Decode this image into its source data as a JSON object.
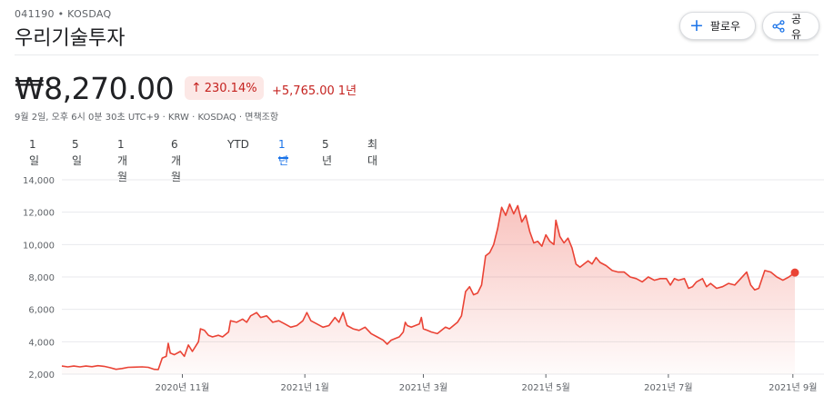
{
  "header": {
    "ticker": "041190 • KOSDAQ",
    "company_name": "우리기술투자",
    "follow_label": "팔로우",
    "share_label": "공유",
    "follow_icon": "plus-icon",
    "share_icon": "share-icon"
  },
  "quote": {
    "price": "₩8,270.00",
    "percent_change": "230.14%",
    "absolute_change": "+5,765.00",
    "period": "1년",
    "meta": "9월 2일, 오후 6시 0분 30초 UTC+9 · KRW · KOSDAQ · 면책조항"
  },
  "range_tabs": [
    {
      "label": "1일",
      "active": false
    },
    {
      "label": "5일",
      "active": false
    },
    {
      "label": "1개월",
      "active": false
    },
    {
      "label": "6개월",
      "active": false
    },
    {
      "label": "YTD",
      "active": false
    },
    {
      "label": "1년",
      "active": true
    },
    {
      "label": "5년",
      "active": false
    },
    {
      "label": "최대",
      "active": false
    }
  ],
  "colors": {
    "line": "#ea4335",
    "positive_text": "#c5221f",
    "badge_bg": "#fce8e6",
    "accent": "#1a73e8"
  },
  "chart_data": {
    "type": "area",
    "title": "",
    "xlabel": "",
    "ylabel": "",
    "ylim": [
      2000,
      14000
    ],
    "y_ticks": [
      {
        "value": 2000,
        "label": "2,000"
      },
      {
        "value": 4000,
        "label": "4,000"
      },
      {
        "value": 6000,
        "label": "6,000"
      },
      {
        "value": 8000,
        "label": "8,000"
      },
      {
        "value": 10000,
        "label": "10,000"
      },
      {
        "value": 12000,
        "label": "12,000"
      },
      {
        "value": 14000,
        "label": "14,000"
      }
    ],
    "x_ticks": [
      {
        "value": "2020-11-01",
        "label": "2020년 11월"
      },
      {
        "value": "2021-01-01",
        "label": "2021년 1월"
      },
      {
        "value": "2021-03-01",
        "label": "2021년 3월"
      },
      {
        "value": "2021-05-01",
        "label": "2021년 5월"
      },
      {
        "value": "2021-07-01",
        "label": "2021년 7월"
      },
      {
        "value": "2021-09-01",
        "label": "2021년 9월"
      }
    ],
    "xlim": [
      "2020-09-02",
      "2021-09-02"
    ],
    "grid": true,
    "series": [
      {
        "points": [
          [
            "2020-09-02",
            2500
          ],
          [
            "2020-09-05",
            2450
          ],
          [
            "2020-09-08",
            2500
          ],
          [
            "2020-09-11",
            2450
          ],
          [
            "2020-09-14",
            2500
          ],
          [
            "2020-09-17",
            2460
          ],
          [
            "2020-09-20",
            2520
          ],
          [
            "2020-09-23",
            2480
          ],
          [
            "2020-09-26",
            2400
          ],
          [
            "2020-09-29",
            2300
          ],
          [
            "2020-10-02",
            2350
          ],
          [
            "2020-10-05",
            2420
          ],
          [
            "2020-10-08",
            2430
          ],
          [
            "2020-10-12",
            2450
          ],
          [
            "2020-10-15",
            2420
          ],
          [
            "2020-10-18",
            2300
          ],
          [
            "2020-10-20",
            2280
          ],
          [
            "2020-10-22",
            3000
          ],
          [
            "2020-10-24",
            3100
          ],
          [
            "2020-10-25",
            3900
          ],
          [
            "2020-10-26",
            3300
          ],
          [
            "2020-10-28",
            3200
          ],
          [
            "2020-10-31",
            3400
          ],
          [
            "2020-11-02",
            3100
          ],
          [
            "2020-11-04",
            3800
          ],
          [
            "2020-11-06",
            3400
          ],
          [
            "2020-11-09",
            4000
          ],
          [
            "2020-11-10",
            4800
          ],
          [
            "2020-11-12",
            4700
          ],
          [
            "2020-11-14",
            4400
          ],
          [
            "2020-11-16",
            4300
          ],
          [
            "2020-11-19",
            4400
          ],
          [
            "2020-11-21",
            4300
          ],
          [
            "2020-11-24",
            4600
          ],
          [
            "2020-11-25",
            5300
          ],
          [
            "2020-11-28",
            5200
          ],
          [
            "2020-12-01",
            5400
          ],
          [
            "2020-12-03",
            5200
          ],
          [
            "2020-12-05",
            5600
          ],
          [
            "2020-12-08",
            5800
          ],
          [
            "2020-12-10",
            5500
          ],
          [
            "2020-12-13",
            5600
          ],
          [
            "2020-12-16",
            5200
          ],
          [
            "2020-12-19",
            5300
          ],
          [
            "2020-12-22",
            5100
          ],
          [
            "2020-12-25",
            4900
          ],
          [
            "2020-12-28",
            5000
          ],
          [
            "2020-12-31",
            5300
          ],
          [
            "2021-01-02",
            5800
          ],
          [
            "2021-01-04",
            5300
          ],
          [
            "2021-01-07",
            5100
          ],
          [
            "2021-01-10",
            4900
          ],
          [
            "2021-01-13",
            5000
          ],
          [
            "2021-01-16",
            5500
          ],
          [
            "2021-01-18",
            5200
          ],
          [
            "2021-01-20",
            5800
          ],
          [
            "2021-01-22",
            5000
          ],
          [
            "2021-01-25",
            4800
          ],
          [
            "2021-01-28",
            4700
          ],
          [
            "2021-01-31",
            4900
          ],
          [
            "2021-02-03",
            4500
          ],
          [
            "2021-02-06",
            4300
          ],
          [
            "2021-02-09",
            4100
          ],
          [
            "2021-02-11",
            3850
          ],
          [
            "2021-02-13",
            4100
          ],
          [
            "2021-02-15",
            4200
          ],
          [
            "2021-02-17",
            4300
          ],
          [
            "2021-02-19",
            4600
          ],
          [
            "2021-02-20",
            5200
          ],
          [
            "2021-02-21",
            5000
          ],
          [
            "2021-02-23",
            4900
          ],
          [
            "2021-02-25",
            5000
          ],
          [
            "2021-02-27",
            5100
          ],
          [
            "2021-02-28",
            5500
          ],
          [
            "2021-03-01",
            4800
          ],
          [
            "2021-03-03",
            4700
          ],
          [
            "2021-03-05",
            4600
          ],
          [
            "2021-03-08",
            4500
          ],
          [
            "2021-03-10",
            4700
          ],
          [
            "2021-03-12",
            4900
          ],
          [
            "2021-03-14",
            4800
          ],
          [
            "2021-03-16",
            5000
          ],
          [
            "2021-03-18",
            5200
          ],
          [
            "2021-03-20",
            5600
          ],
          [
            "2021-03-22",
            7100
          ],
          [
            "2021-03-24",
            7400
          ],
          [
            "2021-03-26",
            6900
          ],
          [
            "2021-03-28",
            7000
          ],
          [
            "2021-03-30",
            7500
          ],
          [
            "2021-04-01",
            9300
          ],
          [
            "2021-04-03",
            9500
          ],
          [
            "2021-04-05",
            10000
          ],
          [
            "2021-04-07",
            11000
          ],
          [
            "2021-04-09",
            12300
          ],
          [
            "2021-04-11",
            11800
          ],
          [
            "2021-04-13",
            12500
          ],
          [
            "2021-04-15",
            11900
          ],
          [
            "2021-04-17",
            12400
          ],
          [
            "2021-04-19",
            11400
          ],
          [
            "2021-04-21",
            11800
          ],
          [
            "2021-04-23",
            10800
          ],
          [
            "2021-04-25",
            10100
          ],
          [
            "2021-04-27",
            10200
          ],
          [
            "2021-04-29",
            9900
          ],
          [
            "2021-05-01",
            10600
          ],
          [
            "2021-05-03",
            10200
          ],
          [
            "2021-05-05",
            10000
          ],
          [
            "2021-05-06",
            11500
          ],
          [
            "2021-05-08",
            10500
          ],
          [
            "2021-05-10",
            10100
          ],
          [
            "2021-05-12",
            10400
          ],
          [
            "2021-05-14",
            9800
          ],
          [
            "2021-05-16",
            8800
          ],
          [
            "2021-05-18",
            8600
          ],
          [
            "2021-05-20",
            8800
          ],
          [
            "2021-05-22",
            9000
          ],
          [
            "2021-05-24",
            8800
          ],
          [
            "2021-05-26",
            9200
          ],
          [
            "2021-05-28",
            8900
          ],
          [
            "2021-05-31",
            8700
          ],
          [
            "2021-06-03",
            8400
          ],
          [
            "2021-06-06",
            8300
          ],
          [
            "2021-06-09",
            8300
          ],
          [
            "2021-06-12",
            8000
          ],
          [
            "2021-06-15",
            7900
          ],
          [
            "2021-06-18",
            7700
          ],
          [
            "2021-06-21",
            8000
          ],
          [
            "2021-06-24",
            7800
          ],
          [
            "2021-06-27",
            7900
          ],
          [
            "2021-06-30",
            7900
          ],
          [
            "2021-07-02",
            7500
          ],
          [
            "2021-07-04",
            7900
          ],
          [
            "2021-07-06",
            7800
          ],
          [
            "2021-07-09",
            7900
          ],
          [
            "2021-07-11",
            7300
          ],
          [
            "2021-07-13",
            7400
          ],
          [
            "2021-07-15",
            7700
          ],
          [
            "2021-07-18",
            7900
          ],
          [
            "2021-07-20",
            7400
          ],
          [
            "2021-07-22",
            7600
          ],
          [
            "2021-07-25",
            7300
          ],
          [
            "2021-07-28",
            7400
          ],
          [
            "2021-07-31",
            7600
          ],
          [
            "2021-08-03",
            7500
          ],
          [
            "2021-08-06",
            7900
          ],
          [
            "2021-08-09",
            8300
          ],
          [
            "2021-08-11",
            7500
          ],
          [
            "2021-08-13",
            7200
          ],
          [
            "2021-08-15",
            7300
          ],
          [
            "2021-08-18",
            8400
          ],
          [
            "2021-08-21",
            8300
          ],
          [
            "2021-08-24",
            8000
          ],
          [
            "2021-08-27",
            7800
          ],
          [
            "2021-08-30",
            8000
          ],
          [
            "2021-09-02",
            8270
          ]
        ]
      }
    ]
  }
}
